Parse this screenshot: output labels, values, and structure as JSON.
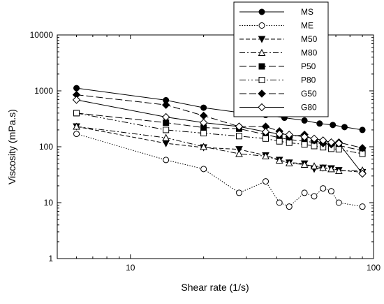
{
  "chart_data": {
    "type": "line",
    "xlabel": "Shear rate (1/s)",
    "ylabel": "Viscosity (mPa.s)",
    "xscale": "log",
    "yscale": "log",
    "xlim": [
      5,
      100
    ],
    "ylim": [
      1,
      10000
    ],
    "xticks": [
      10,
      100
    ],
    "xtick_labels": [
      "10",
      "100"
    ],
    "yticks": [
      1,
      10,
      100,
      1000,
      10000
    ],
    "ytick_labels": [
      "1",
      "10",
      "100",
      "1000",
      "10000"
    ],
    "grid": false,
    "legend_position": "top-right",
    "series": [
      {
        "name": "MS",
        "marker": "filled-circle",
        "line": "solid",
        "x": [
          6,
          14,
          20,
          28,
          36,
          43,
          52,
          60,
          68,
          76,
          90
        ],
        "y": [
          1120,
          680,
          500,
          410,
          370,
          330,
          295,
          260,
          245,
          225,
          200
        ]
      },
      {
        "name": "ME",
        "marker": "open-circle",
        "line": "dotted",
        "x": [
          6,
          14,
          20,
          28,
          36,
          41,
          45,
          52,
          57,
          62,
          67,
          72,
          90
        ],
        "y": [
          170,
          58,
          40,
          15,
          24,
          10,
          8.5,
          15,
          13,
          18,
          16,
          10,
          8.5
        ]
      },
      {
        "name": "M50",
        "marker": "filled-triangle-down",
        "line": "dashed",
        "x": [
          6,
          14,
          20,
          28,
          36,
          41,
          45,
          52,
          57,
          62,
          67,
          72,
          90
        ],
        "y": [
          230,
          115,
          97,
          90,
          70,
          58,
          52,
          50,
          40,
          42,
          41,
          38,
          35
        ]
      },
      {
        "name": "M80",
        "marker": "open-triangle-up",
        "line": "dash-dot",
        "x": [
          6,
          14,
          20,
          28,
          36,
          41,
          45,
          52,
          57,
          62,
          67,
          72,
          90
        ],
        "y": [
          230,
          145,
          100,
          75,
          68,
          57,
          51,
          48,
          45,
          42,
          40,
          37,
          38
        ]
      },
      {
        "name": "P50",
        "marker": "filled-square",
        "line": "long-dash",
        "x": [
          6,
          14,
          20,
          28,
          36,
          41,
          45,
          52,
          57,
          62,
          67,
          72,
          90
        ],
        "y": [
          400,
          270,
          220,
          210,
          165,
          145,
          135,
          125,
          120,
          112,
          108,
          105,
          85
        ]
      },
      {
        "name": "P80",
        "marker": "open-square",
        "line": "dash-dot-dot",
        "x": [
          6,
          14,
          20,
          28,
          36,
          41,
          45,
          52,
          57,
          62,
          67,
          72,
          90
        ],
        "y": [
          400,
          200,
          175,
          155,
          140,
          125,
          118,
          110,
          103,
          98,
          92,
          90,
          75
        ]
      },
      {
        "name": "G50",
        "marker": "filled-diamond",
        "line": "long-dash",
        "x": [
          6,
          14,
          20,
          28,
          36,
          41,
          45,
          52,
          57,
          62,
          67,
          72,
          90
        ],
        "y": [
          850,
          560,
          360,
          230,
          230,
          190,
          150,
          165,
          130,
          115,
          110,
          120,
          95
        ]
      },
      {
        "name": "G80",
        "marker": "open-diamond",
        "line": "solid",
        "x": [
          6,
          14,
          20,
          28,
          36,
          41,
          45,
          52,
          57,
          62,
          67,
          72,
          90
        ],
        "y": [
          690,
          340,
          270,
          230,
          185,
          170,
          165,
          150,
          140,
          130,
          120,
          115,
          33
        ]
      }
    ]
  }
}
